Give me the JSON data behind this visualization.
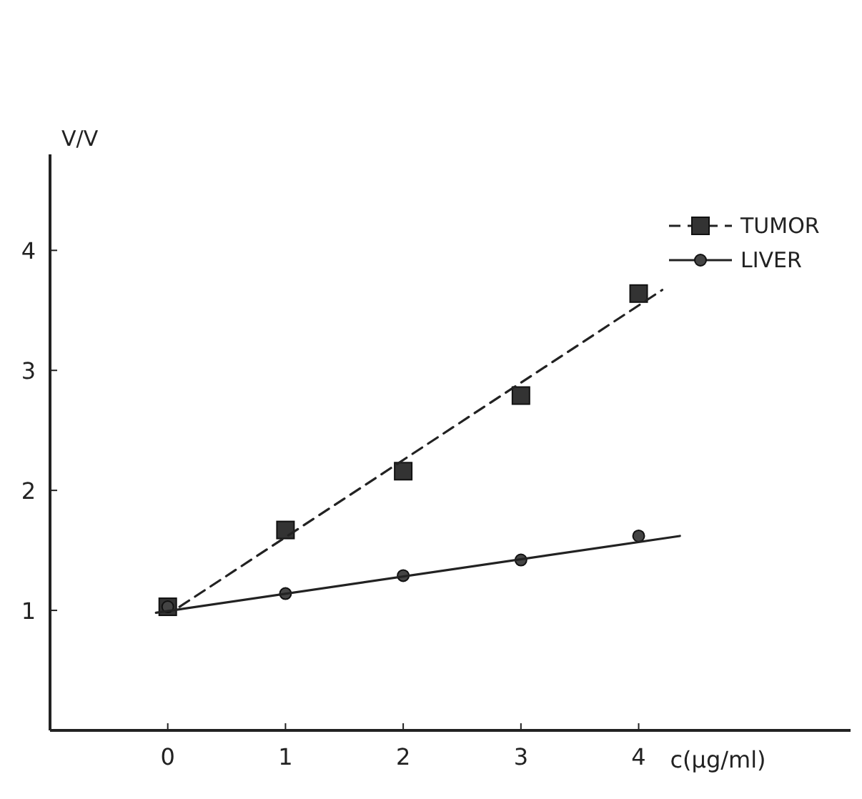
{
  "chart_data": {
    "type": "scatter",
    "xlabel": "c(μg/ml)",
    "ylabel": "V/V",
    "xlim": [
      -1,
      5.8
    ],
    "ylim": [
      0,
      4.8
    ],
    "xticks": [
      0,
      1,
      2,
      3,
      4
    ],
    "yticks": [
      1,
      2,
      3,
      4
    ],
    "grid": false,
    "legend": "top right",
    "series": [
      {
        "name": "TUMOR",
        "marker": "square",
        "line_style": "dashed",
        "color": "#333333",
        "x": [
          0,
          1,
          2,
          3,
          4
        ],
        "values": [
          1.03,
          1.67,
          2.16,
          2.79,
          3.64
        ]
      },
      {
        "type": "line",
        "marker": "none",
        "line_style": "dashed",
        "color": "#222222",
        "x": [
          0.1,
          4.2
        ],
        "values": [
          1.03,
          3.67
        ]
      },
      {
        "name": "LIVER",
        "marker": "circle",
        "line_style": "solid",
        "color": "#444444",
        "x": [
          0,
          1,
          2,
          3,
          4
        ],
        "values": [
          1.03,
          1.14,
          1.29,
          1.42,
          1.62
        ]
      },
      {
        "type": "line",
        "marker": "none",
        "line_style": "solid",
        "color": "#222222",
        "x": [
          -0.1,
          4.35
        ],
        "values": [
          0.98,
          1.62
        ]
      }
    ]
  }
}
